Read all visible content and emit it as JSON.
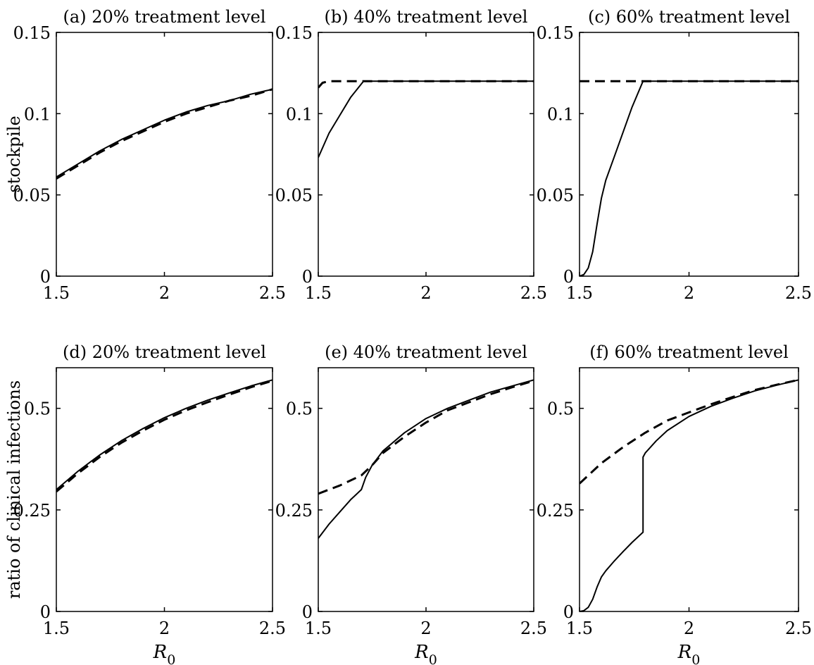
{
  "chart_data": [
    {
      "type": "line",
      "title": "(a) 20% treatment level",
      "xlabel": "",
      "ylabel": "stockpile",
      "xlim": [
        1.5,
        2.5
      ],
      "ylim": [
        0,
        0.15
      ],
      "xticks": [
        "1.5",
        "2",
        "2.5"
      ],
      "yticks": [
        "0",
        "0.05",
        "0.1",
        "0.15"
      ],
      "series": [
        {
          "style": "solid",
          "x": [
            1.5,
            1.6,
            1.7,
            1.8,
            1.9,
            2.0,
            2.1,
            2.2,
            2.3,
            2.4,
            2.5
          ],
          "y": [
            0.061,
            0.069,
            0.077,
            0.084,
            0.09,
            0.096,
            0.101,
            0.105,
            0.108,
            0.112,
            0.115
          ]
        },
        {
          "style": "dashed",
          "x": [
            1.5,
            1.6,
            1.7,
            1.8,
            1.9,
            2.0,
            2.1,
            2.2,
            2.3,
            2.4,
            2.5
          ],
          "y": [
            0.06,
            0.068,
            0.076,
            0.083,
            0.089,
            0.095,
            0.1,
            0.104,
            0.108,
            0.111,
            0.115
          ]
        }
      ]
    },
    {
      "type": "line",
      "title": "(b) 40% treatment level",
      "xlabel": "",
      "ylabel": "",
      "xlim": [
        1.5,
        2.5
      ],
      "ylim": [
        0,
        0.15
      ],
      "xticks": [
        "1.5",
        "2",
        "2.5"
      ],
      "yticks": [
        "0",
        "0.05",
        "0.1",
        "0.15"
      ],
      "series": [
        {
          "style": "solid",
          "x": [
            1.5,
            1.55,
            1.6,
            1.65,
            1.71,
            2.0,
            2.5
          ],
          "y": [
            0.073,
            0.088,
            0.099,
            0.11,
            0.12,
            0.12,
            0.12
          ]
        },
        {
          "style": "dashed",
          "x": [
            1.5,
            1.52,
            1.55,
            1.58,
            2.0,
            2.5
          ],
          "y": [
            0.116,
            0.119,
            0.12,
            0.12,
            0.12,
            0.12
          ]
        }
      ]
    },
    {
      "type": "line",
      "title": "(c) 60% treatment level",
      "xlabel": "",
      "ylabel": "",
      "xlim": [
        1.5,
        2.5
      ],
      "ylim": [
        0,
        0.15
      ],
      "xticks": [
        "1.5",
        "2",
        "2.5"
      ],
      "yticks": [
        "0",
        "0.05",
        "0.1",
        "0.15"
      ],
      "series": [
        {
          "style": "solid",
          "x": [
            1.5,
            1.52,
            1.54,
            1.56,
            1.58,
            1.6,
            1.62,
            1.66,
            1.7,
            1.74,
            1.79,
            2.0,
            2.5
          ],
          "y": [
            0.0,
            0.001,
            0.005,
            0.015,
            0.032,
            0.048,
            0.059,
            0.074,
            0.089,
            0.104,
            0.12,
            0.12,
            0.12
          ]
        },
        {
          "style": "dashed",
          "x": [
            1.5,
            2.0,
            2.5
          ],
          "y": [
            0.12,
            0.12,
            0.12
          ]
        }
      ]
    },
    {
      "type": "line",
      "title": "(d) 20% treatment level",
      "xlabel": "R0",
      "ylabel": "ratio of clinical infections",
      "xlim": [
        1.5,
        2.5
      ],
      "ylim": [
        0,
        0.6
      ],
      "xticks": [
        "1.5",
        "2",
        "2.5"
      ],
      "yticks": [
        "0",
        "0.25",
        "0.5"
      ],
      "series": [
        {
          "style": "solid",
          "x": [
            1.5,
            1.6,
            1.7,
            1.8,
            1.9,
            2.0,
            2.1,
            2.2,
            2.3,
            2.4,
            2.5
          ],
          "y": [
            0.3,
            0.345,
            0.385,
            0.42,
            0.45,
            0.477,
            0.5,
            0.52,
            0.538,
            0.555,
            0.57
          ]
        },
        {
          "style": "dashed",
          "x": [
            1.5,
            1.6,
            1.7,
            1.8,
            1.9,
            2.0,
            2.1,
            2.2,
            2.3,
            2.4,
            2.5
          ],
          "y": [
            0.295,
            0.34,
            0.38,
            0.415,
            0.445,
            0.472,
            0.495,
            0.515,
            0.534,
            0.552,
            0.568
          ]
        }
      ]
    },
    {
      "type": "line",
      "title": "(e) 40% treatment level",
      "xlabel": "R0",
      "ylabel": "",
      "xlim": [
        1.5,
        2.5
      ],
      "ylim": [
        0,
        0.6
      ],
      "xticks": [
        "1.5",
        "2",
        "2.5"
      ],
      "yticks": [
        "0",
        "0.25",
        "0.5"
      ],
      "series": [
        {
          "style": "solid",
          "x": [
            1.5,
            1.55,
            1.6,
            1.65,
            1.7,
            1.72,
            1.75,
            1.8,
            1.9,
            2.0,
            2.1,
            2.2,
            2.3,
            2.4,
            2.5
          ],
          "y": [
            0.18,
            0.215,
            0.245,
            0.275,
            0.3,
            0.33,
            0.36,
            0.395,
            0.44,
            0.475,
            0.5,
            0.52,
            0.54,
            0.555,
            0.57
          ]
        },
        {
          "style": "dashed",
          "x": [
            1.5,
            1.6,
            1.7,
            1.75,
            1.8,
            1.9,
            2.0,
            2.1,
            2.2,
            2.3,
            2.4,
            2.5
          ],
          "y": [
            0.29,
            0.31,
            0.335,
            0.36,
            0.39,
            0.43,
            0.465,
            0.495,
            0.515,
            0.535,
            0.552,
            0.568
          ]
        }
      ]
    },
    {
      "type": "line",
      "title": "(f) 60% treatment level",
      "xlabel": "R0",
      "ylabel": "",
      "xlim": [
        1.5,
        2.5
      ],
      "ylim": [
        0,
        0.6
      ],
      "xticks": [
        "1.5",
        "2",
        "2.5"
      ],
      "yticks": [
        "0",
        "0.25",
        "0.5"
      ],
      "series": [
        {
          "style": "solid",
          "x": [
            1.5,
            1.52,
            1.54,
            1.56,
            1.58,
            1.6,
            1.62,
            1.66,
            1.7,
            1.74,
            1.79,
            1.79,
            1.8,
            1.85,
            1.9,
            2.0,
            2.1,
            2.2,
            2.3,
            2.4,
            2.5
          ],
          "y": [
            0.0,
            0.002,
            0.01,
            0.03,
            0.06,
            0.085,
            0.1,
            0.125,
            0.148,
            0.17,
            0.195,
            0.38,
            0.39,
            0.42,
            0.445,
            0.48,
            0.505,
            0.525,
            0.543,
            0.557,
            0.57
          ]
        },
        {
          "style": "dashed",
          "x": [
            1.5,
            1.6,
            1.7,
            1.8,
            1.9,
            2.0,
            2.1,
            2.2,
            2.3,
            2.4,
            2.5
          ],
          "y": [
            0.315,
            0.365,
            0.405,
            0.44,
            0.47,
            0.49,
            0.51,
            0.528,
            0.545,
            0.558,
            0.57
          ]
        }
      ]
    }
  ]
}
